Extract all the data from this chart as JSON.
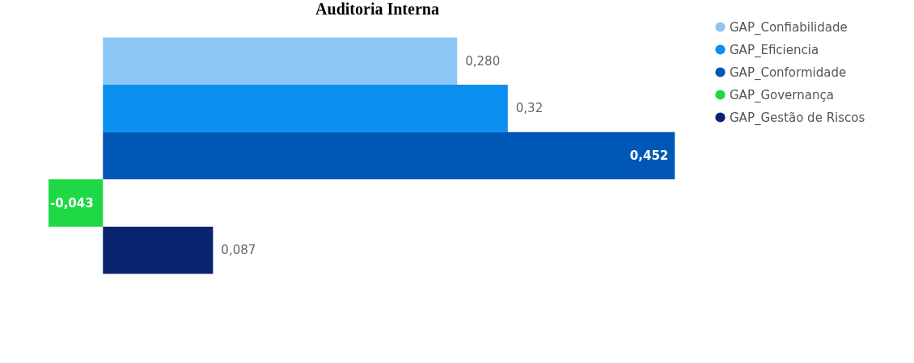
{
  "chart_data": {
    "type": "bar",
    "title": "Auditoria Interna",
    "orientation": "horizontal",
    "categories": [
      null
    ],
    "legend": "right",
    "tick_labels": false,
    "series": [
      {
        "name": "GAP_Confiabilidade",
        "color": "#8dc6f4",
        "values": [
          0.28
        ],
        "value_labels": [
          "0,280"
        ]
      },
      {
        "name": "GAP_Eficiencia",
        "color": "#0a8ef0",
        "values": [
          0.32
        ],
        "value_labels": [
          "0,32"
        ]
      },
      {
        "name": "GAP_Conformidade",
        "color": "#0057b5",
        "values": [
          0.452
        ],
        "value_labels": [
          "0,452"
        ]
      },
      {
        "name": "GAP_Governança",
        "color": "#1ed846",
        "values": [
          -0.043
        ],
        "value_labels": [
          "-0,043"
        ]
      },
      {
        "name": "GAP_Gestão de Riscos",
        "color": "#0a2472",
        "values": [
          0.087
        ],
        "value_labels": [
          "0,087"
        ]
      }
    ]
  }
}
